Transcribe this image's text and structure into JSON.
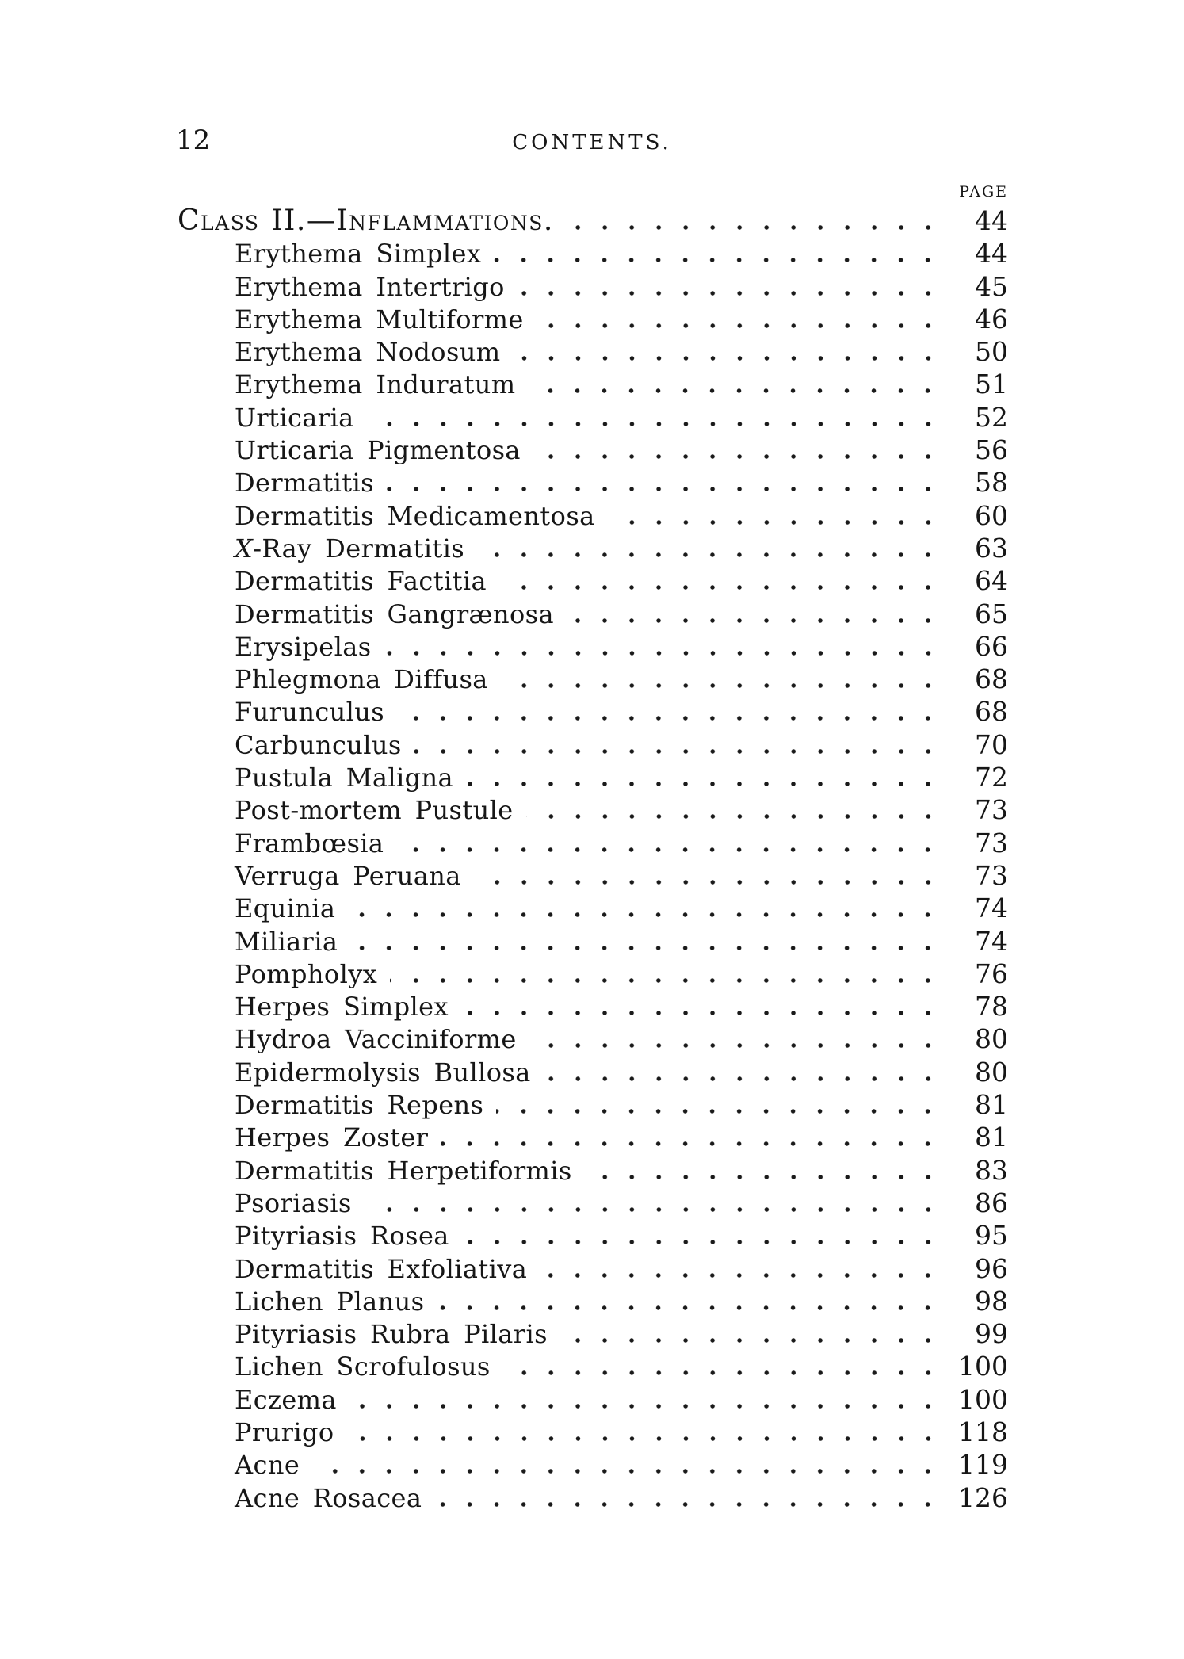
{
  "page": {
    "folio": "12",
    "header_title": "CONTENTS.",
    "page_column_label": "PAGE"
  },
  "colors": {
    "ink": "#161616",
    "paper": "#ffffff"
  },
  "toc": {
    "entries": [
      {
        "label": "Class II.—Inflammations.",
        "page": "44",
        "heading": true
      },
      {
        "label": "Erythema Simplex",
        "page": "44"
      },
      {
        "label": "Erythema Intertrigo",
        "page": "45"
      },
      {
        "label": "Erythema Multiforme",
        "page": "46"
      },
      {
        "label": "Erythema Nodosum",
        "page": "50"
      },
      {
        "label": "Erythema Induratum",
        "page": "51"
      },
      {
        "label": "Urticaria",
        "page": "52"
      },
      {
        "label": "Urticaria Pigmentosa",
        "page": "56"
      },
      {
        "label": "Dermatitis",
        "page": "58"
      },
      {
        "label": "Dermatitis Medicamentosa",
        "page": "60"
      },
      {
        "label": "X-Ray Dermatitis",
        "page": "63",
        "italic_first": true
      },
      {
        "label": "Dermatitis Factitia",
        "page": "64"
      },
      {
        "label": "Dermatitis Gangrænosa",
        "page": "65"
      },
      {
        "label": "Erysipelas",
        "page": "66"
      },
      {
        "label": "Phlegmona Diffusa",
        "page": "68"
      },
      {
        "label": "Furunculus",
        "page": "68"
      },
      {
        "label": "Carbunculus",
        "page": "70"
      },
      {
        "label": "Pustula Maligna",
        "page": "72"
      },
      {
        "label": "Post-mortem Pustule",
        "page": "73"
      },
      {
        "label": "Frambœsia",
        "page": "73"
      },
      {
        "label": "Verruga Peruana",
        "page": "73"
      },
      {
        "label": "Equinia",
        "page": "74"
      },
      {
        "label": "Miliaria",
        "page": "74"
      },
      {
        "label": "Pompholyx",
        "page": "76"
      },
      {
        "label": "Herpes Simplex",
        "page": "78"
      },
      {
        "label": "Hydroa Vacciniforme",
        "page": "80"
      },
      {
        "label": "Epidermolysis Bullosa",
        "page": "80"
      },
      {
        "label": "Dermatitis Repens",
        "page": "81"
      },
      {
        "label": "Herpes Zoster",
        "page": "81"
      },
      {
        "label": "Dermatitis Herpetiformis",
        "page": "83"
      },
      {
        "label": "Psoriasis",
        "page": "86"
      },
      {
        "label": "Pityriasis Rosea",
        "page": "95"
      },
      {
        "label": "Dermatitis Exfoliativa",
        "page": "96"
      },
      {
        "label": "Lichen Planus",
        "page": "98"
      },
      {
        "label": "Pityriasis Rubra Pilaris",
        "page": "99"
      },
      {
        "label": "Lichen Scrofulosus",
        "page": "100"
      },
      {
        "label": "Eczema",
        "page": "100"
      },
      {
        "label": "Prurigo",
        "page": "118"
      },
      {
        "label": "Acne",
        "page": "119"
      },
      {
        "label": "Acne Rosacea",
        "page": "126"
      }
    ]
  }
}
